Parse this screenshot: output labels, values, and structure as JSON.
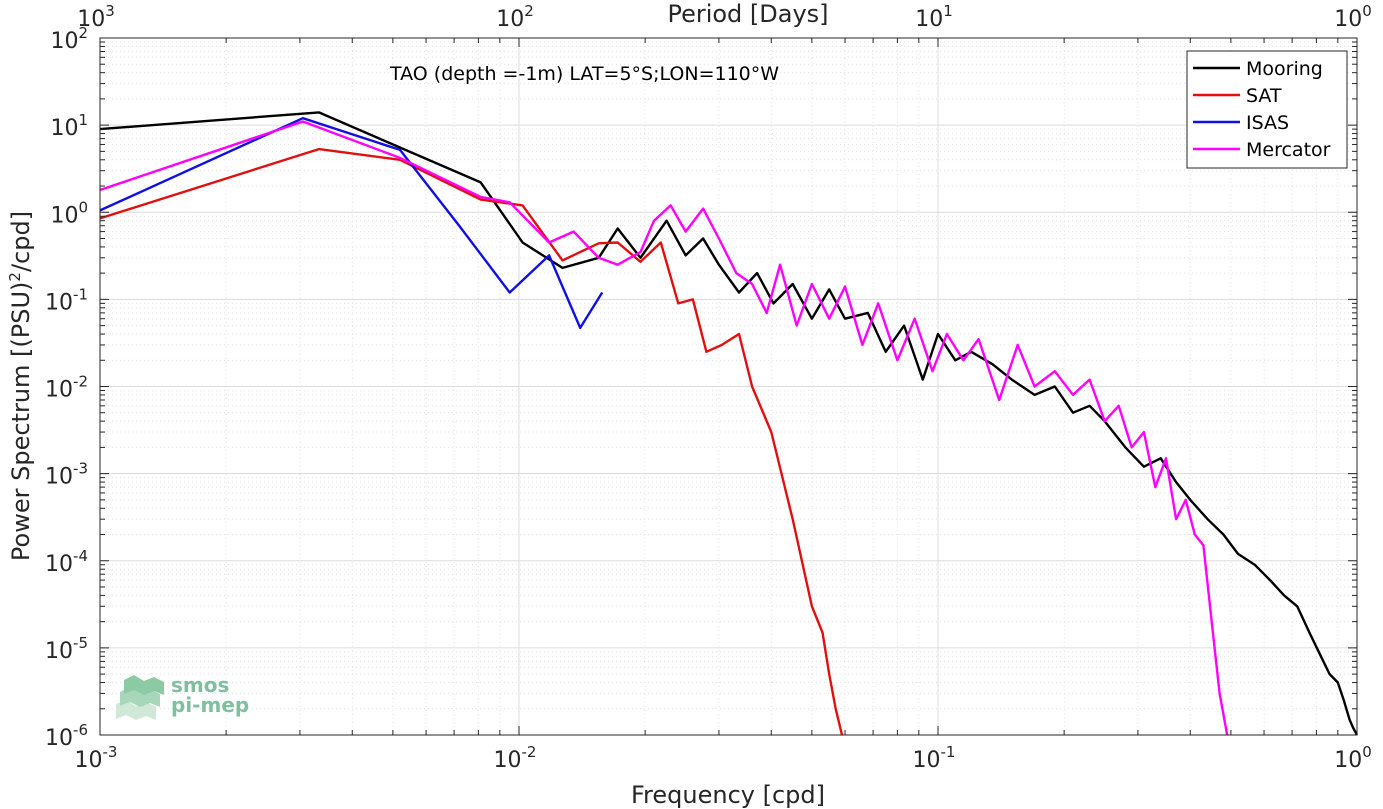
{
  "chart_data": {
    "type": "line",
    "title": "",
    "annotation": "TAO (depth =-1m) LAT=5°S;LON=110°W",
    "xlabel": "Frequency [cpd]",
    "ylabel": "Power Spectrum [(PSU)²/cpd]",
    "ylabel_parts": {
      "before": "Power Spectrum [(PSU)",
      "sup": "2",
      "after": "/cpd]"
    },
    "top_xlabel": "Period [Days]",
    "xscale": "log",
    "yscale": "log",
    "xlim": [
      0.001,
      1
    ],
    "ylim": [
      1e-06,
      100
    ],
    "grid": true,
    "minor_grid": true,
    "legend_position": "top-right",
    "x_ticks": [
      {
        "base": "10",
        "exp": "-3"
      },
      {
        "base": "10",
        "exp": "-2"
      },
      {
        "base": "10",
        "exp": "-1"
      },
      {
        "base": "10",
        "exp": "0"
      }
    ],
    "top_x_ticks": [
      {
        "base": "10",
        "exp": "3"
      },
      {
        "base": "10",
        "exp": "2"
      },
      {
        "base": "10",
        "exp": "1"
      },
      {
        "base": "10",
        "exp": "0"
      }
    ],
    "y_ticks": [
      {
        "base": "10",
        "exp": "2"
      },
      {
        "base": "10",
        "exp": "1"
      },
      {
        "base": "10",
        "exp": "0"
      },
      {
        "base": "10",
        "exp": "-1"
      },
      {
        "base": "10",
        "exp": "-2"
      },
      {
        "base": "10",
        "exp": "-3"
      },
      {
        "base": "10",
        "exp": "-4"
      },
      {
        "base": "10",
        "exp": "-5"
      },
      {
        "base": "10",
        "exp": "-6"
      }
    ],
    "series": [
      {
        "name": "Mooring",
        "color": "#000000",
        "x": [
          0.001,
          0.00333,
          0.0081,
          0.0102,
          0.0127,
          0.0155,
          0.0172,
          0.0195,
          0.0225,
          0.025,
          0.0275,
          0.03,
          0.0335,
          0.037,
          0.0405,
          0.045,
          0.05,
          0.055,
          0.06,
          0.068,
          0.075,
          0.083,
          0.092,
          0.1,
          0.11,
          0.12,
          0.135,
          0.15,
          0.17,
          0.19,
          0.21,
          0.23,
          0.25,
          0.28,
          0.31,
          0.34,
          0.37,
          0.4,
          0.44,
          0.48,
          0.52,
          0.57,
          0.62,
          0.67,
          0.72,
          0.77,
          0.82,
          0.86,
          0.9,
          0.93,
          0.96,
          0.98,
          1.0
        ],
        "y": [
          9,
          14,
          2.2,
          0.45,
          0.23,
          0.3,
          0.65,
          0.3,
          0.8,
          0.32,
          0.5,
          0.25,
          0.12,
          0.2,
          0.09,
          0.15,
          0.06,
          0.13,
          0.06,
          0.07,
          0.025,
          0.05,
          0.012,
          0.04,
          0.02,
          0.025,
          0.018,
          0.012,
          0.008,
          0.01,
          0.005,
          0.006,
          0.004,
          0.002,
          0.0012,
          0.0015,
          0.0008,
          0.0005,
          0.0003,
          0.0002,
          0.00012,
          9e-05,
          6e-05,
          4e-05,
          3e-05,
          1.5e-05,
          8e-06,
          5e-06,
          4e-06,
          2.5e-06,
          1.5e-06,
          1.2e-06,
          1e-06
        ]
      },
      {
        "name": "SAT",
        "color": "#e01010",
        "x": [
          0.001,
          0.00333,
          0.0052,
          0.0081,
          0.0102,
          0.0127,
          0.0155,
          0.0172,
          0.0195,
          0.0218,
          0.024,
          0.026,
          0.028,
          0.0305,
          0.0335,
          0.036,
          0.04,
          0.045,
          0.05,
          0.053,
          0.055,
          0.057,
          0.059
        ],
        "y": [
          0.85,
          5.3,
          4,
          1.4,
          1.2,
          0.28,
          0.44,
          0.45,
          0.27,
          0.45,
          0.09,
          0.1,
          0.025,
          0.03,
          0.04,
          0.01,
          0.003,
          0.0003,
          3e-05,
          1.5e-05,
          5e-06,
          2e-06,
          1e-06
        ]
      },
      {
        "name": "ISAS",
        "color": "#1010e0",
        "x": [
          0.001,
          0.00305,
          0.0052,
          0.0072,
          0.0095,
          0.0118,
          0.014,
          0.0158
        ],
        "y": [
          1.05,
          12,
          5.2,
          0.7,
          0.12,
          0.32,
          0.047,
          0.12
        ]
      },
      {
        "name": "Mercator",
        "color": "#ff00ff",
        "x": [
          0.001,
          0.00305,
          0.0052,
          0.0081,
          0.0095,
          0.0118,
          0.0135,
          0.0155,
          0.0172,
          0.0195,
          0.021,
          0.023,
          0.025,
          0.0275,
          0.03,
          0.033,
          0.036,
          0.039,
          0.042,
          0.046,
          0.05,
          0.055,
          0.06,
          0.066,
          0.072,
          0.08,
          0.088,
          0.097,
          0.105,
          0.115,
          0.125,
          0.14,
          0.155,
          0.17,
          0.19,
          0.21,
          0.23,
          0.25,
          0.27,
          0.29,
          0.31,
          0.33,
          0.35,
          0.37,
          0.39,
          0.41,
          0.43,
          0.45,
          0.47,
          0.49
        ],
        "y": [
          1.8,
          11,
          4.2,
          1.5,
          1.3,
          0.45,
          0.6,
          0.3,
          0.25,
          0.35,
          0.8,
          1.2,
          0.6,
          1.1,
          0.5,
          0.2,
          0.15,
          0.07,
          0.25,
          0.05,
          0.15,
          0.06,
          0.14,
          0.03,
          0.09,
          0.02,
          0.06,
          0.015,
          0.04,
          0.02,
          0.035,
          0.007,
          0.03,
          0.01,
          0.015,
          0.008,
          0.012,
          0.004,
          0.006,
          0.002,
          0.003,
          0.0007,
          0.0015,
          0.0003,
          0.0005,
          0.0002,
          0.00015,
          2e-05,
          3e-06,
          1e-06
        ]
      }
    ]
  },
  "logo": {
    "line1": "smos",
    "line2": "pi-mep"
  }
}
